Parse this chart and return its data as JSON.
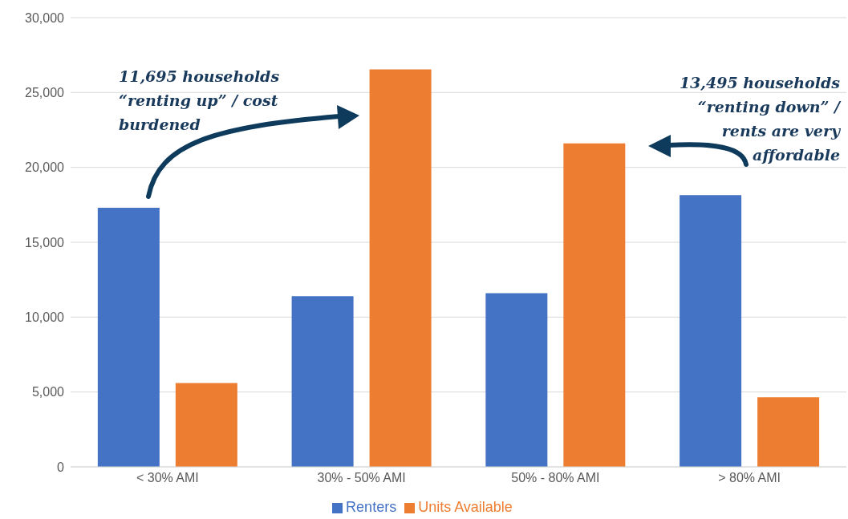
{
  "chart_data": {
    "type": "bar",
    "categories": [
      "< 30% AMI",
      "30% - 50% AMI",
      "50% - 80% AMI",
      "> 80% AMI"
    ],
    "series": [
      {
        "name": "Renters",
        "color": "#4472c4",
        "values": [
          17300,
          11400,
          11600,
          18150
        ]
      },
      {
        "name": "Units Available",
        "color": "#ed7d31",
        "values": [
          5600,
          26550,
          21600,
          4650
        ]
      }
    ],
    "ylim": [
      0,
      30000
    ],
    "yticks": [
      {
        "value": 0,
        "label": "0"
      },
      {
        "value": 5000,
        "label": "5,000"
      },
      {
        "value": 10000,
        "label": "10,000"
      },
      {
        "value": 15000,
        "label": "15,000"
      },
      {
        "value": 20000,
        "label": "20,000"
      },
      {
        "value": 25000,
        "label": "25,000"
      },
      {
        "value": 30000,
        "label": "30,000"
      }
    ],
    "grid": "y",
    "legend": "bottom",
    "annotations": [
      "11,695 households “renting up” / cost burdened",
      "13,495 households “renting down” / rents are very affordable"
    ]
  }
}
